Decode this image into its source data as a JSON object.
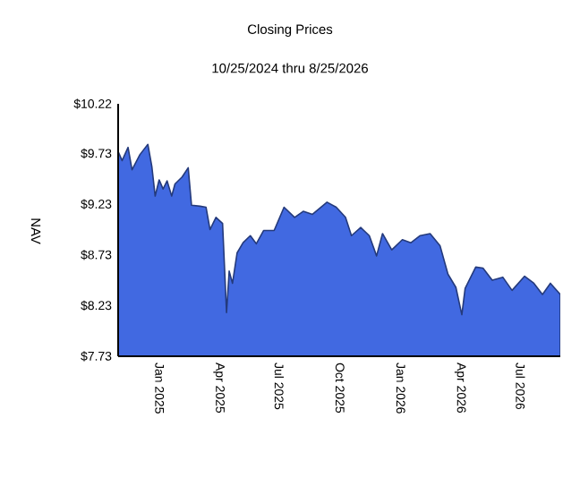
{
  "chart_data": {
    "type": "area",
    "title": "Closing Prices",
    "subtitle": "10/25/2024 thru 8/25/2026",
    "ylabel": "NAV",
    "x": [
      "2024-10-25",
      "2024-10-31",
      "2024-11-09",
      "2024-11-15",
      "2024-11-27",
      "2024-12-09",
      "2024-12-15",
      "2024-12-20",
      "2024-12-26",
      "2025-01-01",
      "2025-01-07",
      "2025-01-14",
      "2025-01-19",
      "2025-01-30",
      "2025-02-08",
      "2025-02-13",
      "2025-02-26",
      "2025-03-07",
      "2025-03-13",
      "2025-03-22",
      "2025-04-01",
      "2025-04-07",
      "2025-04-11",
      "2025-04-16",
      "2025-04-23",
      "2025-05-02",
      "2025-05-13",
      "2025-05-22",
      "2025-06-02",
      "2025-06-18",
      "2025-07-03",
      "2025-07-19",
      "2025-08-01",
      "2025-08-15",
      "2025-09-06",
      "2025-09-20",
      "2025-10-04",
      "2025-10-13",
      "2025-10-27",
      "2025-11-09",
      "2025-11-20",
      "2025-11-29",
      "2025-12-13",
      "2025-12-29",
      "2026-01-11",
      "2026-01-25",
      "2026-02-09",
      "2026-02-24",
      "2026-03-08",
      "2026-03-20",
      "2026-03-29",
      "2026-04-03",
      "2026-04-19",
      "2026-04-30",
      "2026-05-14",
      "2026-05-30",
      "2026-06-13",
      "2026-07-02",
      "2026-07-16",
      "2026-07-29",
      "2026-08-10",
      "2026-08-25"
    ],
    "series": [
      {
        "color": "#4169e1",
        "values": [
          9.75,
          9.66,
          9.79,
          9.57,
          9.72,
          9.82,
          9.6,
          9.31,
          9.47,
          9.38,
          9.46,
          9.31,
          9.43,
          9.5,
          9.59,
          9.22,
          9.21,
          9.2,
          8.98,
          9.1,
          9.04,
          8.16,
          8.57,
          8.45,
          8.75,
          8.85,
          8.92,
          8.84,
          8.97,
          8.97,
          9.2,
          9.1,
          9.16,
          9.13,
          9.25,
          9.2,
          9.1,
          8.92,
          9.0,
          8.92,
          8.72,
          8.94,
          8.78,
          8.88,
          8.85,
          8.92,
          8.94,
          8.82,
          8.54,
          8.41,
          8.14,
          8.4,
          8.61,
          8.6,
          8.48,
          8.51,
          8.38,
          8.52,
          8.45,
          8.34,
          8.45,
          8.34
        ]
      }
    ],
    "xlim": [
      "2024-10-25",
      "2026-08-25"
    ],
    "xticks": [
      {
        "value": "2025-01-01",
        "label": "Jan 2025"
      },
      {
        "value": "2025-04-01",
        "label": "Apr 2025"
      },
      {
        "value": "2025-07-01",
        "label": "Jul 2025"
      },
      {
        "value": "2025-10-01",
        "label": "Oct 2025"
      },
      {
        "value": "2026-01-01",
        "label": "Jan 2026"
      },
      {
        "value": "2026-04-01",
        "label": "Apr 2026"
      },
      {
        "value": "2026-07-01",
        "label": "Jul 2026"
      }
    ],
    "ylim": [
      7.73,
      10.22
    ],
    "yticks": [
      {
        "value": 7.73,
        "label": "$7.73"
      },
      {
        "value": 8.23,
        "label": "$8.23"
      },
      {
        "value": 8.73,
        "label": "$8.73"
      },
      {
        "value": 9.23,
        "label": "$9.23"
      },
      {
        "value": 9.73,
        "label": "$9.73"
      },
      {
        "value": 10.22,
        "label": "$10.22"
      }
    ],
    "grid": false
  }
}
